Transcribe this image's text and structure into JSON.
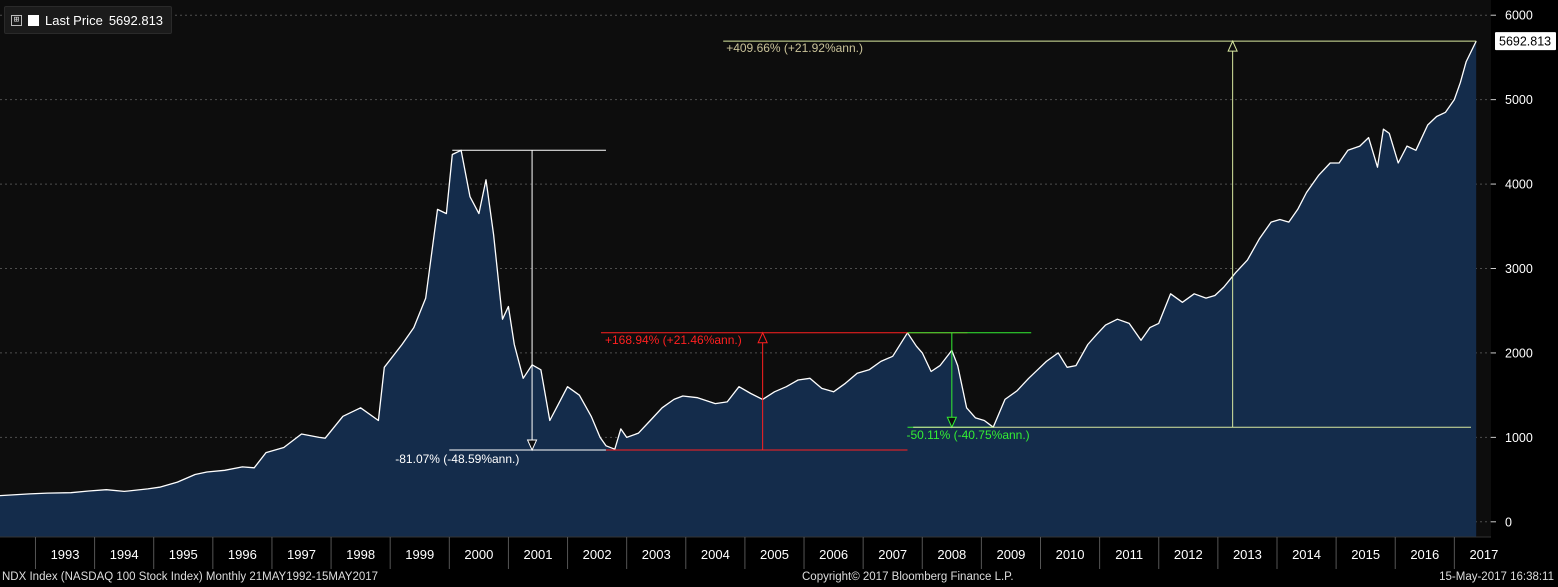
{
  "legend": {
    "expand_symbol": "⊞",
    "series_label": "Last Price",
    "last_value": "5692.813"
  },
  "footer": {
    "left": "NDX Index (NASDAQ 100 Stock Index)  Monthly 21MAY1992-15MAY2017",
    "center": "Copyright© 2017 Bloomberg Finance L.P.",
    "right": "15-May-2017 16:38:11"
  },
  "colors": {
    "background": "#0d0d0d",
    "area_fill": "#142c4b",
    "line": "#ffffff",
    "annotation_white": "#ffffff",
    "annotation_red": "#ff2020",
    "annotation_green": "#33ee33",
    "annotation_olive": "#d8e8a0",
    "annotation_olive_text": "#c9c299"
  },
  "chart_data": {
    "type": "area",
    "series": [
      {
        "name": "Last Price",
        "points": [
          [
            1992.4,
            310
          ],
          [
            1992.9,
            330
          ],
          [
            1993.2,
            340
          ],
          [
            1993.6,
            345
          ],
          [
            1993.9,
            365
          ],
          [
            1994.2,
            380
          ],
          [
            1994.5,
            360
          ],
          [
            1994.9,
            390
          ],
          [
            1995.1,
            410
          ],
          [
            1995.4,
            470
          ],
          [
            1995.7,
            560
          ],
          [
            1995.9,
            590
          ],
          [
            1996.2,
            610
          ],
          [
            1996.5,
            650
          ],
          [
            1996.7,
            640
          ],
          [
            1996.9,
            820
          ],
          [
            1997.2,
            880
          ],
          [
            1997.5,
            1040
          ],
          [
            1997.8,
            1000
          ],
          [
            1997.9,
            990
          ],
          [
            1998.2,
            1250
          ],
          [
            1998.5,
            1350
          ],
          [
            1998.8,
            1200
          ],
          [
            1998.9,
            1830
          ],
          [
            1999.2,
            2100
          ],
          [
            1999.4,
            2300
          ],
          [
            1999.6,
            2650
          ],
          [
            1999.8,
            3700
          ],
          [
            1999.95,
            3650
          ],
          [
            2000.05,
            4350
          ],
          [
            2000.2,
            4400
          ],
          [
            2000.35,
            3850
          ],
          [
            2000.5,
            3650
          ],
          [
            2000.62,
            4050
          ],
          [
            2000.75,
            3400
          ],
          [
            2000.9,
            2400
          ],
          [
            2001.0,
            2550
          ],
          [
            2001.1,
            2100
          ],
          [
            2001.25,
            1700
          ],
          [
            2001.4,
            1860
          ],
          [
            2001.55,
            1800
          ],
          [
            2001.7,
            1200
          ],
          [
            2001.85,
            1400
          ],
          [
            2002.0,
            1600
          ],
          [
            2002.2,
            1500
          ],
          [
            2002.4,
            1250
          ],
          [
            2002.55,
            1000
          ],
          [
            2002.65,
            900
          ],
          [
            2002.8,
            860
          ],
          [
            2002.9,
            1100
          ],
          [
            2003.0,
            1000
          ],
          [
            2003.2,
            1050
          ],
          [
            2003.4,
            1200
          ],
          [
            2003.6,
            1350
          ],
          [
            2003.8,
            1450
          ],
          [
            2003.95,
            1490
          ],
          [
            2004.2,
            1470
          ],
          [
            2004.5,
            1400
          ],
          [
            2004.7,
            1420
          ],
          [
            2004.9,
            1600
          ],
          [
            2005.1,
            1520
          ],
          [
            2005.3,
            1450
          ],
          [
            2005.5,
            1540
          ],
          [
            2005.7,
            1600
          ],
          [
            2005.9,
            1680
          ],
          [
            2006.1,
            1700
          ],
          [
            2006.3,
            1580
          ],
          [
            2006.5,
            1540
          ],
          [
            2006.7,
            1640
          ],
          [
            2006.9,
            1760
          ],
          [
            2007.1,
            1800
          ],
          [
            2007.3,
            1900
          ],
          [
            2007.5,
            1960
          ],
          [
            2007.75,
            2239
          ],
          [
            2007.9,
            2080
          ],
          [
            2008.0,
            2000
          ],
          [
            2008.15,
            1780
          ],
          [
            2008.3,
            1850
          ],
          [
            2008.5,
            2030
          ],
          [
            2008.6,
            1850
          ],
          [
            2008.75,
            1350
          ],
          [
            2008.9,
            1230
          ],
          [
            2009.05,
            1200
          ],
          [
            2009.2,
            1120
          ],
          [
            2009.4,
            1450
          ],
          [
            2009.6,
            1550
          ],
          [
            2009.8,
            1700
          ],
          [
            2009.95,
            1800
          ],
          [
            2010.1,
            1900
          ],
          [
            2010.3,
            2000
          ],
          [
            2010.45,
            1830
          ],
          [
            2010.6,
            1850
          ],
          [
            2010.8,
            2100
          ],
          [
            2010.95,
            2220
          ],
          [
            2011.1,
            2330
          ],
          [
            2011.3,
            2400
          ],
          [
            2011.5,
            2350
          ],
          [
            2011.7,
            2150
          ],
          [
            2011.85,
            2300
          ],
          [
            2012.0,
            2350
          ],
          [
            2012.2,
            2700
          ],
          [
            2012.4,
            2600
          ],
          [
            2012.6,
            2700
          ],
          [
            2012.8,
            2650
          ],
          [
            2012.95,
            2680
          ],
          [
            2013.1,
            2780
          ],
          [
            2013.3,
            2950
          ],
          [
            2013.5,
            3100
          ],
          [
            2013.7,
            3350
          ],
          [
            2013.9,
            3550
          ],
          [
            2014.05,
            3580
          ],
          [
            2014.2,
            3550
          ],
          [
            2014.35,
            3700
          ],
          [
            2014.5,
            3900
          ],
          [
            2014.7,
            4100
          ],
          [
            2014.9,
            4250
          ],
          [
            2015.05,
            4250
          ],
          [
            2015.2,
            4400
          ],
          [
            2015.4,
            4450
          ],
          [
            2015.55,
            4550
          ],
          [
            2015.7,
            4200
          ],
          [
            2015.8,
            4650
          ],
          [
            2015.9,
            4600
          ],
          [
            2016.05,
            4250
          ],
          [
            2016.2,
            4450
          ],
          [
            2016.35,
            4400
          ],
          [
            2016.55,
            4700
          ],
          [
            2016.7,
            4800
          ],
          [
            2016.85,
            4850
          ],
          [
            2017.0,
            5000
          ],
          [
            2017.1,
            5200
          ],
          [
            2017.2,
            5450
          ],
          [
            2017.37,
            5692.813
          ]
        ]
      }
    ],
    "ylim": [
      -180,
      6180
    ],
    "y_ticks": [
      0,
      1000,
      2000,
      3000,
      4000,
      5000,
      6000
    ],
    "y_tick_labels": [
      "0",
      "1000",
      "2000",
      "3000",
      "4000",
      "5000",
      "6000"
    ],
    "x_ticks": [
      1993,
      1994,
      1995,
      1996,
      1997,
      1998,
      1999,
      2000,
      2001,
      2002,
      2003,
      2004,
      2005,
      2006,
      2007,
      2008,
      2009,
      2010,
      2011,
      2012,
      2013,
      2014,
      2015,
      2016,
      2017
    ],
    "x_tick_labels": [
      "1993",
      "1994",
      "1995",
      "1996",
      "1997",
      "1998",
      "1999",
      "2000",
      "2001",
      "2002",
      "2003",
      "2004",
      "2005",
      "2006",
      "2007",
      "2008",
      "2009",
      "2010",
      "2011",
      "2012",
      "2013",
      "2014",
      "2015",
      "2016",
      "2017"
    ],
    "xlim": [
      1992.4,
      2017.62
    ],
    "y_axis_position": "right",
    "grid": true,
    "last_value_label": "5692.813",
    "annotations": [
      {
        "kind": "drawdown",
        "color_key": "annotation_white",
        "x_start": 2000.05,
        "x_end": 2002.65,
        "y_top": 4400,
        "y_bottom": 850,
        "arrow_x": 2001.4,
        "direction": "down",
        "label": "-81.07% (-48.59%ann.)",
        "text_color_key": "annotation_white"
      },
      {
        "kind": "rally",
        "color_key": "annotation_red",
        "x_start": 2002.65,
        "x_end": 2007.75,
        "y_top": 2239,
        "y_bottom": 850,
        "arrow_x": 2005.3,
        "direction": "up",
        "label": "+168.94% (+21.46%ann.)",
        "text_color_key": "annotation_red"
      },
      {
        "kind": "drawdown",
        "color_key": "annotation_green",
        "x_start": 2007.75,
        "x_end": 2009.2,
        "y_top": 2239,
        "y_bottom": 1120,
        "arrow_x": 2008.5,
        "direction": "down",
        "label": "-50.11% (-40.75%ann.)",
        "text_color_key": "annotation_green"
      },
      {
        "kind": "rally",
        "color_key": "annotation_olive",
        "x_start": 2009.2,
        "x_end": 2017.37,
        "y_top": 5692.813,
        "y_bottom": 1120,
        "arrow_x": 2013.25,
        "direction": "up",
        "label": "+409.66% (+21.92%ann.)",
        "text_color_key": "annotation_olive_text"
      }
    ]
  }
}
